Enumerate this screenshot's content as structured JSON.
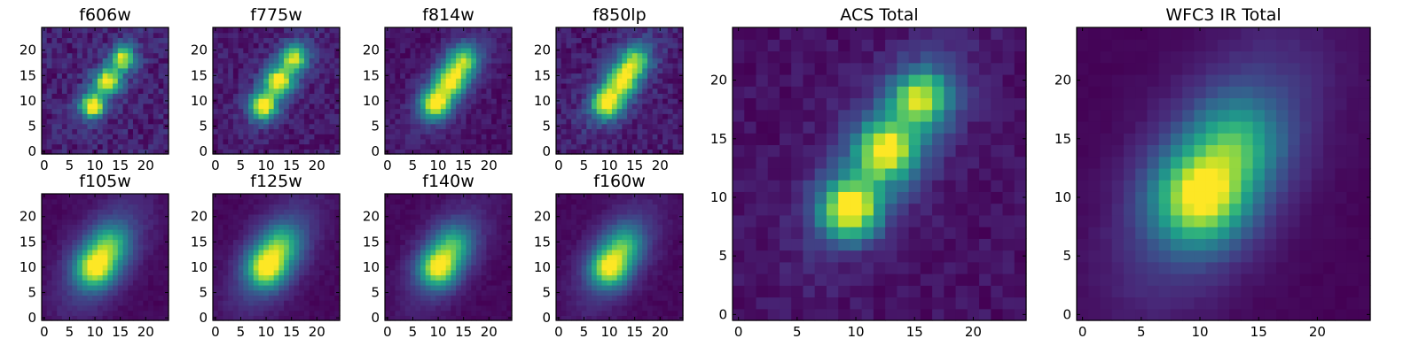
{
  "figure": {
    "colormap": "viridis",
    "colormap_stops": [
      "#440154",
      "#482878",
      "#3e4989",
      "#31688e",
      "#26828e",
      "#1f9e89",
      "#35b779",
      "#6ece58",
      "#b5de2b",
      "#fde725"
    ],
    "grid_size": 25,
    "xlim": [
      -0.5,
      24.5
    ],
    "ylim": [
      -0.5,
      24.5
    ],
    "small_ticks": [
      0,
      5,
      10,
      15,
      20
    ],
    "large_ticks": [
      0,
      5,
      10,
      15,
      20
    ]
  },
  "chart_data": [
    {
      "type": "heatmap",
      "title": "f606w",
      "xticks": [
        0,
        5,
        10,
        15,
        20
      ],
      "yticks": [
        0,
        5,
        10,
        15,
        20
      ],
      "xlim": [
        -0.5,
        24.5
      ],
      "ylim": [
        -0.5,
        24.5
      ],
      "model": {
        "components": [
          {
            "x": 9.5,
            "y": 9.0,
            "amp": 1.0
          },
          {
            "x": 12.5,
            "y": 14.0,
            "amp": 0.85
          },
          {
            "x": 15.5,
            "y": 18.5,
            "amp": 0.8
          }
        ],
        "sigma": 1.6,
        "halo_amp": 0.25,
        "halo_sigma_major": 6.0,
        "halo_sigma_minor": 2.5,
        "angle_deg": 55,
        "background": 0.12,
        "noise": 0.1
      }
    },
    {
      "type": "heatmap",
      "title": "f775w",
      "xticks": [
        0,
        5,
        10,
        15,
        20
      ],
      "yticks": [
        0,
        5,
        10,
        15,
        20
      ],
      "xlim": [
        -0.5,
        24.5
      ],
      "ylim": [
        -0.5,
        24.5
      ],
      "model": {
        "components": [
          {
            "x": 9.5,
            "y": 9.0,
            "amp": 1.0
          },
          {
            "x": 12.5,
            "y": 14.0,
            "amp": 0.85
          },
          {
            "x": 15.5,
            "y": 18.5,
            "amp": 0.8
          }
        ],
        "sigma": 1.8,
        "halo_amp": 0.3,
        "halo_sigma_major": 6.5,
        "halo_sigma_minor": 2.8,
        "angle_deg": 55,
        "background": 0.13,
        "noise": 0.08
      }
    },
    {
      "type": "heatmap",
      "title": "f814w",
      "xticks": [
        0,
        5,
        10,
        15,
        20
      ],
      "yticks": [
        0,
        5,
        10,
        15,
        20
      ],
      "xlim": [
        -0.5,
        24.5
      ],
      "ylim": [
        -0.5,
        24.5
      ],
      "model": {
        "components": [
          {
            "x": 9.5,
            "y": 9.5,
            "amp": 1.0
          },
          {
            "x": 12.5,
            "y": 14.0,
            "amp": 0.8
          },
          {
            "x": 15.0,
            "y": 18.0,
            "amp": 0.7
          }
        ],
        "sigma": 2.0,
        "halo_amp": 0.35,
        "halo_sigma_major": 7.0,
        "halo_sigma_minor": 3.0,
        "angle_deg": 55,
        "background": 0.13,
        "noise": 0.06
      }
    },
    {
      "type": "heatmap",
      "title": "f850lp",
      "xticks": [
        0,
        5,
        10,
        15,
        20
      ],
      "yticks": [
        0,
        5,
        10,
        15,
        20
      ],
      "xlim": [
        -0.5,
        24.5
      ],
      "ylim": [
        -0.5,
        24.5
      ],
      "model": {
        "components": [
          {
            "x": 9.5,
            "y": 9.5,
            "amp": 1.0
          },
          {
            "x": 12.5,
            "y": 14.0,
            "amp": 0.8
          },
          {
            "x": 15.0,
            "y": 18.0,
            "amp": 0.7
          }
        ],
        "sigma": 2.0,
        "halo_amp": 0.35,
        "halo_sigma_major": 7.0,
        "halo_sigma_minor": 3.0,
        "angle_deg": 55,
        "background": 0.13,
        "noise": 0.09
      }
    },
    {
      "type": "heatmap",
      "title": "f105w",
      "xticks": [
        0,
        5,
        10,
        15,
        20
      ],
      "yticks": [
        0,
        5,
        10,
        15,
        20
      ],
      "xlim": [
        -0.5,
        24.5
      ],
      "ylim": [
        -0.5,
        24.5
      ],
      "model": {
        "components": [
          {
            "x": 10.0,
            "y": 10.0,
            "amp": 1.0
          },
          {
            "x": 13.0,
            "y": 14.5,
            "amp": 0.55
          }
        ],
        "sigma": 2.6,
        "halo_amp": 0.45,
        "halo_sigma_major": 8.0,
        "halo_sigma_minor": 4.0,
        "angle_deg": 58,
        "background": 0.12,
        "noise": 0.03
      }
    },
    {
      "type": "heatmap",
      "title": "f125w",
      "xticks": [
        0,
        5,
        10,
        15,
        20
      ],
      "yticks": [
        0,
        5,
        10,
        15,
        20
      ],
      "xlim": [
        -0.5,
        24.5
      ],
      "ylim": [
        -0.5,
        24.5
      ],
      "model": {
        "components": [
          {
            "x": 10.0,
            "y": 10.0,
            "amp": 1.0
          },
          {
            "x": 13.0,
            "y": 14.5,
            "amp": 0.55
          }
        ],
        "sigma": 2.6,
        "halo_amp": 0.45,
        "halo_sigma_major": 8.0,
        "halo_sigma_minor": 4.0,
        "angle_deg": 58,
        "background": 0.12,
        "noise": 0.03
      }
    },
    {
      "type": "heatmap",
      "title": "f140w",
      "xticks": [
        0,
        5,
        10,
        15,
        20
      ],
      "yticks": [
        0,
        5,
        10,
        15,
        20
      ],
      "xlim": [
        -0.5,
        24.5
      ],
      "ylim": [
        -0.5,
        24.5
      ],
      "model": {
        "components": [
          {
            "x": 10.0,
            "y": 10.0,
            "amp": 1.0
          },
          {
            "x": 13.0,
            "y": 14.5,
            "amp": 0.5
          }
        ],
        "sigma": 2.5,
        "halo_amp": 0.4,
        "halo_sigma_major": 7.5,
        "halo_sigma_minor": 3.8,
        "angle_deg": 58,
        "background": 0.11,
        "noise": 0.03
      }
    },
    {
      "type": "heatmap",
      "title": "f160w",
      "xticks": [
        0,
        5,
        10,
        15,
        20
      ],
      "yticks": [
        0,
        5,
        10,
        15,
        20
      ],
      "xlim": [
        -0.5,
        24.5
      ],
      "ylim": [
        -0.5,
        24.5
      ],
      "model": {
        "components": [
          {
            "x": 10.0,
            "y": 10.0,
            "amp": 1.0
          },
          {
            "x": 13.0,
            "y": 14.5,
            "amp": 0.5
          }
        ],
        "sigma": 2.5,
        "halo_amp": 0.4,
        "halo_sigma_major": 7.5,
        "halo_sigma_minor": 3.8,
        "angle_deg": 58,
        "background": 0.1,
        "noise": 0.03
      }
    },
    {
      "type": "heatmap",
      "title": "ACS Total",
      "xticks": [
        0,
        5,
        10,
        15,
        20
      ],
      "yticks": [
        0,
        5,
        10,
        15,
        20
      ],
      "xlim": [
        -0.5,
        24.5
      ],
      "ylim": [
        -0.5,
        24.5
      ],
      "model": {
        "components": [
          {
            "x": 9.5,
            "y": 9.0,
            "amp": 1.0
          },
          {
            "x": 12.5,
            "y": 14.0,
            "amp": 0.85
          },
          {
            "x": 15.5,
            "y": 18.5,
            "amp": 0.78
          }
        ],
        "sigma": 1.7,
        "halo_amp": 0.3,
        "halo_sigma_major": 6.5,
        "halo_sigma_minor": 2.8,
        "angle_deg": 55,
        "background": 0.13,
        "noise": 0.05
      }
    },
    {
      "type": "heatmap",
      "title": "WFC3 IR Total",
      "xticks": [
        0,
        5,
        10,
        15,
        20
      ],
      "yticks": [
        0,
        5,
        10,
        15,
        20
      ],
      "xlim": [
        -0.5,
        24.5
      ],
      "ylim": [
        -0.5,
        24.5
      ],
      "model": {
        "components": [
          {
            "x": 10.0,
            "y": 10.0,
            "amp": 1.0
          },
          {
            "x": 13.0,
            "y": 14.5,
            "amp": 0.5
          }
        ],
        "sigma": 2.6,
        "halo_amp": 0.45,
        "halo_sigma_major": 8.0,
        "halo_sigma_minor": 4.0,
        "angle_deg": 58,
        "background": 0.1,
        "noise": 0.015
      }
    }
  ]
}
